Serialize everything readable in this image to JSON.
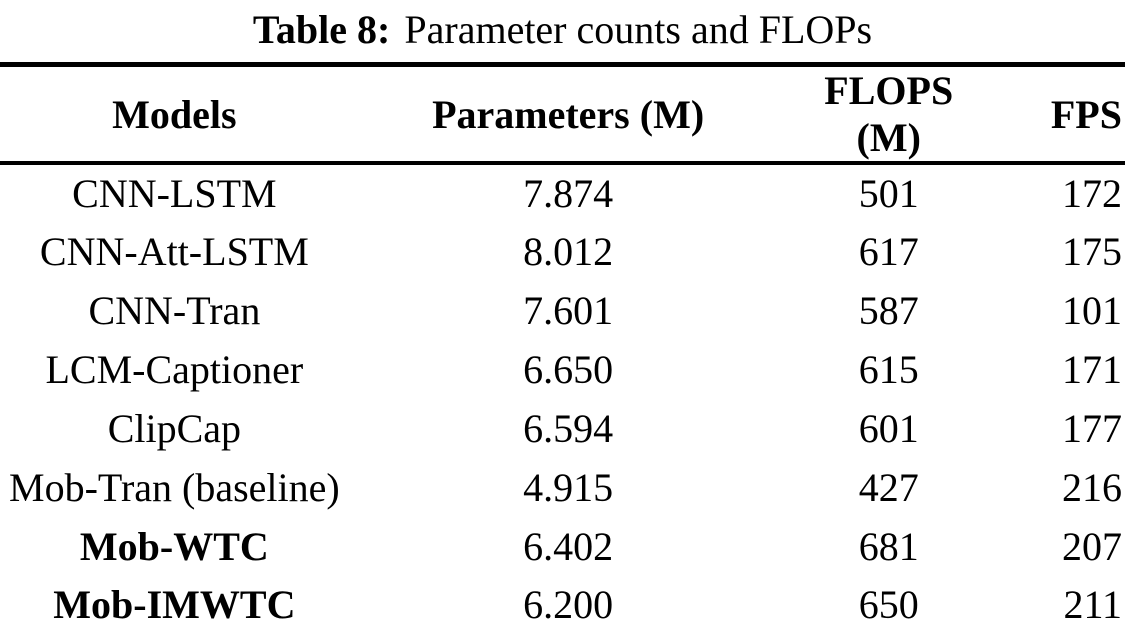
{
  "caption": {
    "label": "Table 8:",
    "title": "Parameter counts and FLOPs"
  },
  "table": {
    "columns": [
      "Models",
      "Parameters (M)",
      "FLOPS (M)",
      "FPS"
    ],
    "rows": [
      {
        "model": "CNN-LSTM",
        "params": "7.874",
        "flops": "501",
        "fps": "172",
        "emphasis": false
      },
      {
        "model": "CNN-Att-LSTM",
        "params": "8.012",
        "flops": "617",
        "fps": "175",
        "emphasis": false
      },
      {
        "model": "CNN-Tran",
        "params": "7.601",
        "flops": "587",
        "fps": "101",
        "emphasis": false
      },
      {
        "model": "LCM-Captioner",
        "params": "6.650",
        "flops": "615",
        "fps": "171",
        "emphasis": false
      },
      {
        "model": "ClipCap",
        "params": "6.594",
        "flops": "601",
        "fps": "177",
        "emphasis": false
      },
      {
        "model": "Mob-Tran (baseline)",
        "params": "4.915",
        "flops": "427",
        "fps": "216",
        "emphasis": false
      },
      {
        "model": "Mob-WTC",
        "params": "6.402",
        "flops": "681",
        "fps": "207",
        "emphasis": true
      },
      {
        "model": "Mob-IMWTC",
        "params": "6.200",
        "flops": "650",
        "fps": "211",
        "emphasis": true
      }
    ]
  },
  "colors": {
    "text": "#000000",
    "background": "#ffffff",
    "rule": "#000000"
  }
}
